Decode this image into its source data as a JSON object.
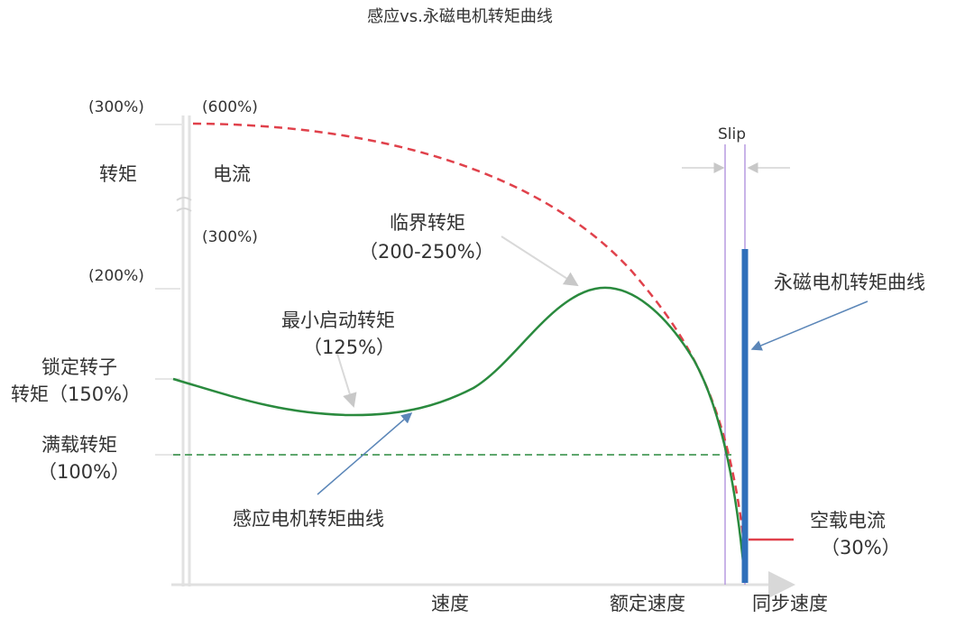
{
  "title": "感应vs.永磁电机转矩曲线",
  "torque_axis": {
    "label": "转矩",
    "ticks": [
      "(300%)",
      "(200%)"
    ]
  },
  "current_axis": {
    "label": "电流",
    "ticks": [
      "(600%)",
      "(300%)"
    ]
  },
  "x_axis": {
    "label_speed": "速度",
    "label_rated": "额定速度",
    "label_sync": "同步速度"
  },
  "labels": {
    "slip": "Slip",
    "breakdown": "临界转矩",
    "breakdown_pct": "（200-250%）",
    "pullup": "最小启动转矩",
    "pullup_pct": "（125%）",
    "locked_line1": "锁定转子",
    "locked_line2": "转矩（150%）",
    "fullload_line1": "满载转矩",
    "fullload_line2": "（100%）",
    "induction_curve": "感应电机转矩曲线",
    "pm_curve": "永磁电机转矩曲线",
    "noload_line1": "空载电流",
    "noload_line2": "（30%）"
  },
  "colors": {
    "induction": "#2a8a3e",
    "current": "#e0414b",
    "pm": "#2f6fba",
    "slip": "#a98bcf",
    "axis": "#dedede",
    "pointer": "#6f93bf"
  }
}
